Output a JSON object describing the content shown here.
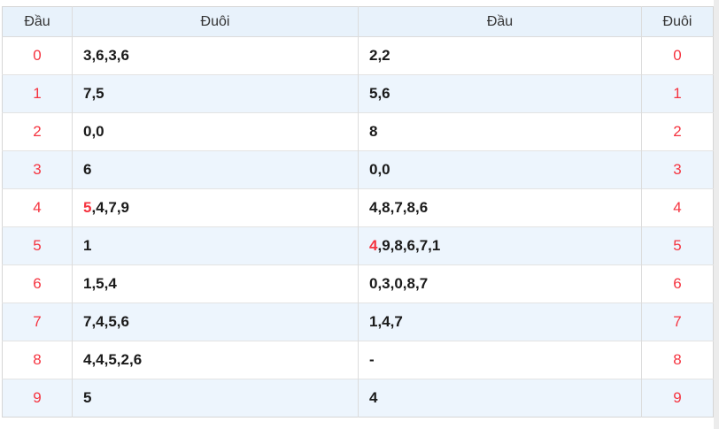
{
  "colors": {
    "red": "#f5333f",
    "header_bg": "#e8f2fb",
    "row_alt_bg": "#edf5fd",
    "border": "#d6d6d6",
    "text_dark": "#1a1a1a"
  },
  "table": {
    "headers": [
      "Đầu",
      "Đuôi",
      "Đầu",
      "Đuôi"
    ],
    "rows": [
      {
        "left_digit": "0",
        "left_values": [
          {
            "text": "3,6,3,6",
            "red": false
          }
        ],
        "right_values": [
          {
            "text": "2,2",
            "red": false
          }
        ],
        "right_digit": "0"
      },
      {
        "left_digit": "1",
        "left_values": [
          {
            "text": "7,5",
            "red": false
          }
        ],
        "right_values": [
          {
            "text": "5,6",
            "red": false
          }
        ],
        "right_digit": "1"
      },
      {
        "left_digit": "2",
        "left_values": [
          {
            "text": "0,0",
            "red": false
          }
        ],
        "right_values": [
          {
            "text": "8",
            "red": false
          }
        ],
        "right_digit": "2"
      },
      {
        "left_digit": "3",
        "left_values": [
          {
            "text": "6",
            "red": false
          }
        ],
        "right_values": [
          {
            "text": "0,0",
            "red": false
          }
        ],
        "right_digit": "3"
      },
      {
        "left_digit": "4",
        "left_values": [
          {
            "text": "5",
            "red": true
          },
          {
            "text": ",4,7,9",
            "red": false
          }
        ],
        "right_values": [
          {
            "text": "4,8,7,8,6",
            "red": false
          }
        ],
        "right_digit": "4"
      },
      {
        "left_digit": "5",
        "left_values": [
          {
            "text": "1",
            "red": false
          }
        ],
        "right_values": [
          {
            "text": "4",
            "red": true
          },
          {
            "text": ",9,8,6,7,1",
            "red": false
          }
        ],
        "right_digit": "5"
      },
      {
        "left_digit": "6",
        "left_values": [
          {
            "text": "1,5,4",
            "red": false
          }
        ],
        "right_values": [
          {
            "text": "0,3,0,8,7",
            "red": false
          }
        ],
        "right_digit": "6"
      },
      {
        "left_digit": "7",
        "left_values": [
          {
            "text": "7,4,5,6",
            "red": false
          }
        ],
        "right_values": [
          {
            "text": "1,4,7",
            "red": false
          }
        ],
        "right_digit": "7"
      },
      {
        "left_digit": "8",
        "left_values": [
          {
            "text": "4,4,5,2,6",
            "red": false
          }
        ],
        "right_values": [
          {
            "text": "-",
            "red": false
          }
        ],
        "right_digit": "8"
      },
      {
        "left_digit": "9",
        "left_values": [
          {
            "text": "5",
            "red": false
          }
        ],
        "right_values": [
          {
            "text": "4",
            "red": false
          }
        ],
        "right_digit": "9"
      }
    ]
  }
}
